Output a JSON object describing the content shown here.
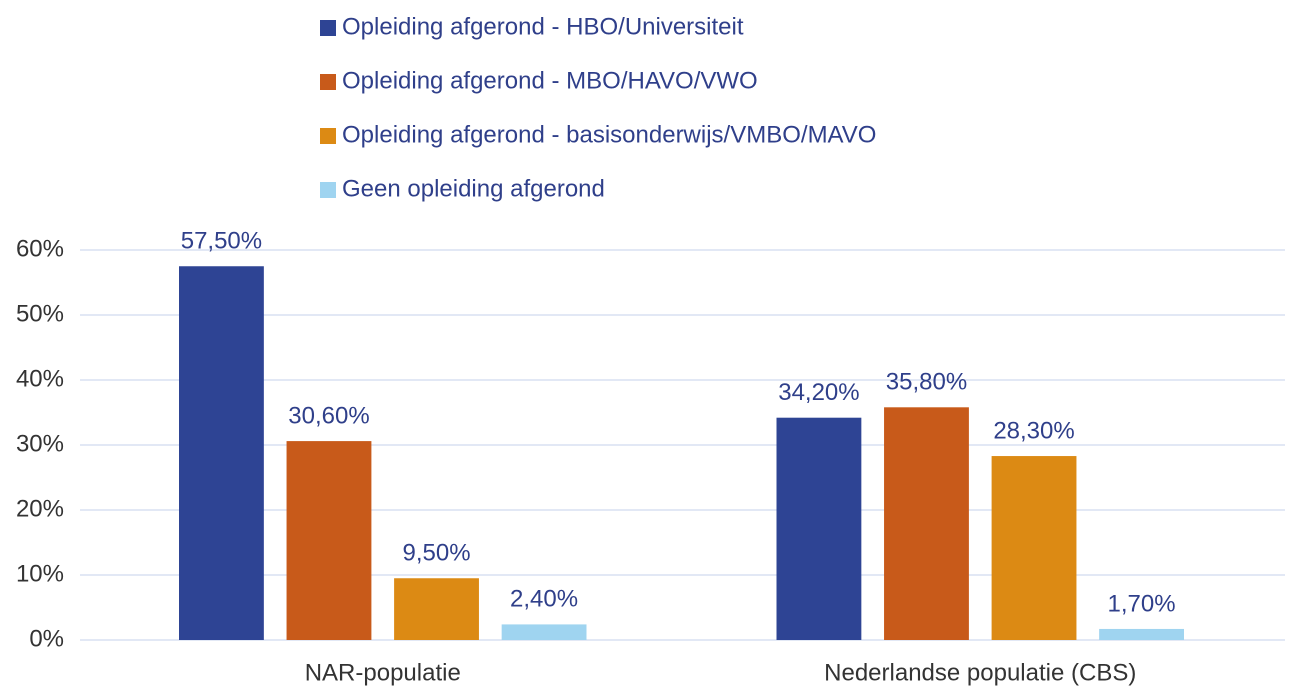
{
  "chart_data": {
    "type": "bar",
    "categories": [
      "NAR-populatie",
      "Nederlandse populatie (CBS)"
    ],
    "series": [
      {
        "name": "Opleiding afgerond - HBO/Universiteit",
        "color": "#2e4494",
        "values": [
          57.5,
          34.2
        ],
        "value_labels": [
          "57,50%",
          "34,20%"
        ]
      },
      {
        "name": "Opleiding afgerond - MBO/HAVO/VWO",
        "color": "#c85a1a",
        "values": [
          30.6,
          35.8
        ],
        "value_labels": [
          "30,60%",
          "35,80%"
        ]
      },
      {
        "name": "Opleiding afgerond - basisonderwijs/VMBO/MAVO",
        "color": "#dc8a14",
        "values": [
          9.5,
          28.3
        ],
        "value_labels": [
          "9,50%",
          "28,30%"
        ]
      },
      {
        "name": "Geen opleiding afgerond",
        "color": "#9fd4f0",
        "values": [
          2.4,
          1.7
        ],
        "value_labels": [
          "2,40%",
          "1,70%"
        ]
      }
    ],
    "ylim": [
      0,
      60
    ],
    "yticks": [
      {
        "value": 0,
        "label": "0%"
      },
      {
        "value": 10,
        "label": "10%"
      },
      {
        "value": 20,
        "label": "20%"
      },
      {
        "value": 30,
        "label": "30%"
      },
      {
        "value": 40,
        "label": "40%"
      },
      {
        "value": 50,
        "label": "50%"
      },
      {
        "value": 60,
        "label": "60%"
      }
    ],
    "grid": true,
    "legend": "top"
  }
}
